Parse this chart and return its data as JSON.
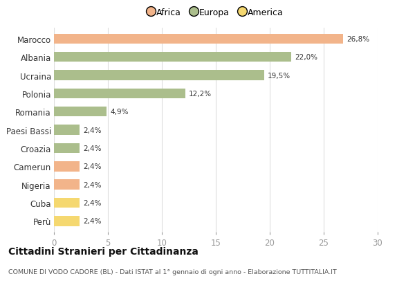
{
  "categories": [
    "Marocco",
    "Albania",
    "Ucraina",
    "Polonia",
    "Romania",
    "Paesi Bassi",
    "Croazia",
    "Camerun",
    "Nigeria",
    "Cuba",
    "Perù"
  ],
  "values": [
    26.8,
    22.0,
    19.5,
    12.2,
    4.9,
    2.4,
    2.4,
    2.4,
    2.4,
    2.4,
    2.4
  ],
  "labels": [
    "26,8%",
    "22,0%",
    "19,5%",
    "12,2%",
    "4,9%",
    "2,4%",
    "2,4%",
    "2,4%",
    "2,4%",
    "2,4%",
    "2,4%"
  ],
  "colors": [
    "#F2B48A",
    "#ABBE8C",
    "#ABBE8C",
    "#ABBE8C",
    "#ABBE8C",
    "#ABBE8C",
    "#ABBE8C",
    "#F2B48A",
    "#F2B48A",
    "#F5D870",
    "#F5D870"
  ],
  "legend_labels": [
    "Africa",
    "Europa",
    "America"
  ],
  "legend_colors": [
    "#F2B48A",
    "#ABBE8C",
    "#F5D870"
  ],
  "xlim": [
    0,
    30
  ],
  "xticks": [
    0,
    5,
    10,
    15,
    20,
    25,
    30
  ],
  "title": "Cittadini Stranieri per Cittadinanza",
  "subtitle": "COMUNE DI VODO CADORE (BL) - Dati ISTAT al 1° gennaio di ogni anno - Elaborazione TUTTITALIA.IT",
  "background_color": "#FFFFFF",
  "grid_color": "#DDDDDD",
  "bar_height": 0.55
}
